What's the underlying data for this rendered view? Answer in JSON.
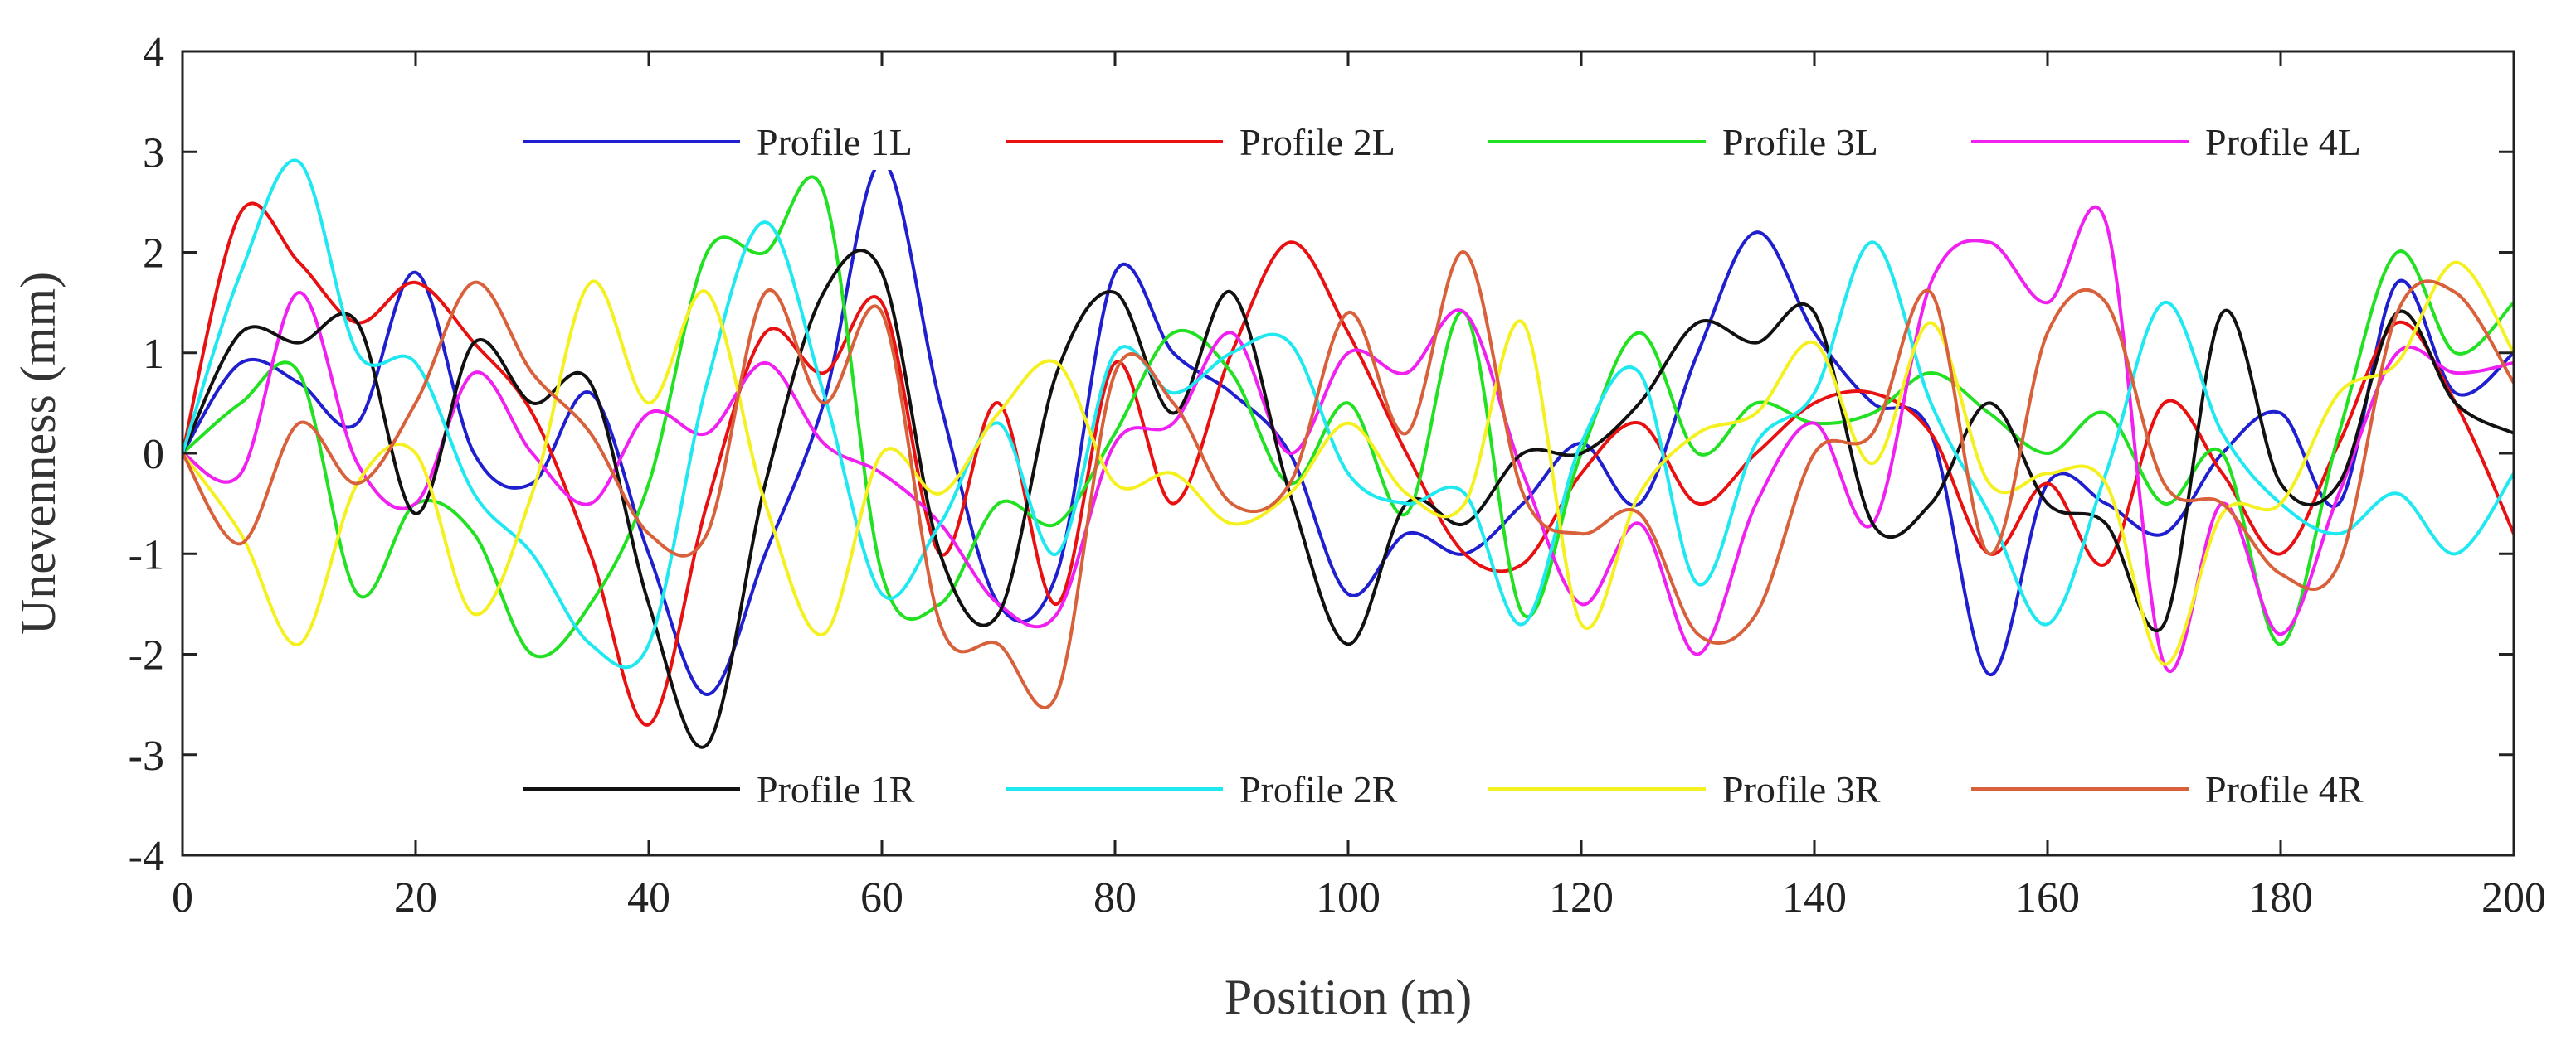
{
  "chart_data": {
    "type": "line",
    "title": "",
    "xlabel": "Position (m)",
    "ylabel": "Unevenness (mm)",
    "xlim": [
      0,
      200
    ],
    "ylim": [
      -4,
      4
    ],
    "xticks": [
      0,
      20,
      40,
      60,
      80,
      100,
      120,
      140,
      160,
      180,
      200
    ],
    "yticks": [
      -4,
      -3,
      -2,
      -1,
      0,
      1,
      2,
      3,
      4
    ],
    "grid": false,
    "legend_groups": [
      "top",
      "bottom"
    ],
    "x": [
      0,
      5,
      10,
      15,
      20,
      25,
      30,
      35,
      40,
      45,
      50,
      55,
      60,
      65,
      70,
      75,
      80,
      85,
      90,
      95,
      100,
      105,
      110,
      115,
      120,
      125,
      130,
      135,
      140,
      145,
      150,
      155,
      160,
      165,
      170,
      175,
      180,
      185,
      190,
      195,
      200
    ],
    "series": [
      {
        "name": "Profile 1L",
        "color": "#1f1fd0",
        "legend_group": "top",
        "values": [
          0.0,
          0.9,
          0.7,
          0.3,
          1.8,
          0.0,
          -0.3,
          0.6,
          -1.0,
          -2.4,
          -1.0,
          0.5,
          2.9,
          0.5,
          -1.5,
          -1.2,
          1.8,
          1.0,
          0.6,
          0.0,
          -1.4,
          -0.8,
          -1.0,
          -0.5,
          0.1,
          -0.5,
          1.0,
          2.2,
          1.2,
          0.5,
          0.2,
          -2.2,
          -0.3,
          -0.5,
          -0.8,
          0.0,
          0.4,
          -0.5,
          1.7,
          0.6,
          1.0
        ]
      },
      {
        "name": "Profile 2L",
        "color": "#e81010",
        "legend_group": "top",
        "values": [
          0.0,
          2.4,
          1.9,
          1.3,
          1.7,
          1.1,
          0.4,
          -1.0,
          -2.7,
          -0.5,
          1.2,
          0.8,
          1.5,
          -1.0,
          0.5,
          -1.5,
          0.9,
          -0.5,
          1.0,
          2.1,
          1.2,
          0.0,
          -1.0,
          -1.1,
          -0.2,
          0.3,
          -0.5,
          0.0,
          0.5,
          0.6,
          0.2,
          -1.0,
          -0.3,
          -1.1,
          0.5,
          -0.2,
          -1.0,
          0.1,
          1.3,
          0.5,
          -0.8
        ]
      },
      {
        "name": "Profile 3L",
        "color": "#22e022",
        "legend_group": "top",
        "values": [
          0.0,
          0.5,
          0.8,
          -1.4,
          -0.5,
          -0.8,
          -2.0,
          -1.5,
          -0.3,
          2.0,
          2.0,
          2.6,
          -1.2,
          -1.5,
          -0.5,
          -0.7,
          0.2,
          1.2,
          0.8,
          -0.3,
          0.5,
          -0.6,
          1.4,
          -1.6,
          0.0,
          1.2,
          0.0,
          0.5,
          0.3,
          0.4,
          0.8,
          0.4,
          0.0,
          0.4,
          -0.5,
          0.0,
          -1.9,
          0.2,
          2.0,
          1.0,
          1.5
        ]
      },
      {
        "name": "Profile 4L",
        "color": "#f020f0",
        "legend_group": "top",
        "values": [
          0.0,
          -0.2,
          1.6,
          -0.1,
          -0.5,
          0.8,
          0.0,
          -0.5,
          0.4,
          0.2,
          0.9,
          0.1,
          -0.2,
          -0.7,
          -1.5,
          -1.6,
          0.1,
          0.3,
          1.2,
          0.0,
          1.0,
          0.8,
          1.4,
          -0.2,
          -1.5,
          -0.7,
          -2.0,
          -0.5,
          0.3,
          -0.7,
          1.7,
          2.1,
          1.5,
          2.3,
          -2.1,
          -0.5,
          -1.8,
          -0.4,
          1.0,
          0.8,
          0.9
        ]
      },
      {
        "name": "Profile 1R",
        "color": "#111111",
        "legend_group": "bottom",
        "values": [
          0.0,
          1.2,
          1.1,
          1.3,
          -0.6,
          1.1,
          0.5,
          0.7,
          -1.5,
          -2.9,
          -0.3,
          1.6,
          1.8,
          -1.0,
          -1.6,
          0.8,
          1.6,
          0.4,
          1.6,
          -0.4,
          -1.9,
          -0.5,
          -0.7,
          0.0,
          0.0,
          0.5,
          1.3,
          1.1,
          1.4,
          -0.7,
          -0.5,
          0.5,
          -0.5,
          -0.7,
          -1.7,
          1.4,
          -0.3,
          -0.3,
          1.4,
          0.5,
          0.2
        ]
      },
      {
        "name": "Profile 2R",
        "color": "#20e8f0",
        "legend_group": "bottom",
        "values": [
          0.0,
          1.8,
          2.9,
          1.0,
          0.9,
          -0.4,
          -1.0,
          -1.9,
          -1.9,
          0.7,
          2.3,
          0.6,
          -1.4,
          -0.7,
          0.3,
          -1.0,
          1.0,
          0.6,
          1.0,
          1.1,
          -0.2,
          -0.5,
          -0.4,
          -1.7,
          0.1,
          0.8,
          -1.3,
          0.1,
          0.6,
          2.1,
          0.5,
          -0.6,
          -1.7,
          -0.2,
          1.5,
          0.2,
          -0.5,
          -0.8,
          -0.4,
          -1.0,
          -0.2
        ]
      },
      {
        "name": "Profile 3R",
        "color": "#f5f020",
        "legend_group": "bottom",
        "values": [
          0.0,
          -0.8,
          -1.9,
          -0.3,
          0.0,
          -1.6,
          -0.4,
          1.7,
          0.5,
          1.6,
          -0.5,
          -1.8,
          0.0,
          -0.4,
          0.4,
          0.9,
          -0.3,
          -0.2,
          -0.7,
          -0.4,
          0.3,
          -0.4,
          -0.5,
          1.3,
          -1.7,
          -0.4,
          0.2,
          0.4,
          1.1,
          -0.1,
          1.3,
          -0.3,
          -0.2,
          -0.3,
          -2.1,
          -0.6,
          -0.5,
          0.6,
          0.9,
          1.9,
          1.0
        ]
      },
      {
        "name": "Profile 4R",
        "color": "#d8603a",
        "legend_group": "bottom",
        "values": [
          0.0,
          -0.9,
          0.3,
          -0.3,
          0.5,
          1.7,
          0.8,
          0.2,
          -0.8,
          -0.8,
          1.6,
          0.5,
          1.4,
          -1.7,
          -1.9,
          -2.4,
          0.8,
          0.5,
          -0.5,
          -0.3,
          1.4,
          0.2,
          2.0,
          -0.4,
          -0.8,
          -0.6,
          -1.8,
          -1.6,
          0.0,
          0.2,
          1.6,
          -1.0,
          1.2,
          1.5,
          -0.3,
          -0.5,
          -1.2,
          -1.1,
          1.4,
          1.6,
          0.7
        ]
      }
    ]
  }
}
